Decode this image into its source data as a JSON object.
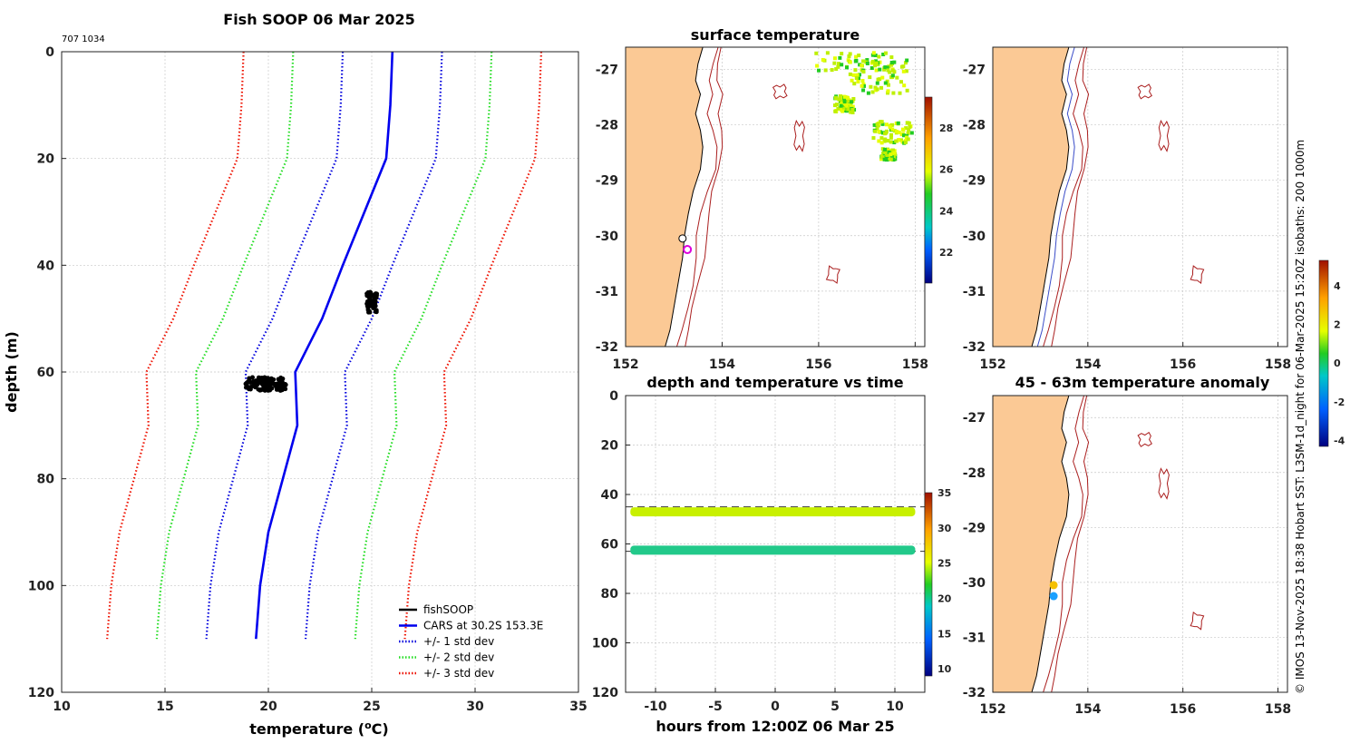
{
  "page_title": "Fish SOOP 06 Mar 2025",
  "corner_code": "707 1034",
  "side_credit": "© IMOS 13-Nov-2025 18:38 Hobart SST: L3SM-1d_night for 06-Mar-2025 15:20Z isobaths: 200  1000m",
  "chart_data": [
    {
      "id": "profile",
      "type": "line",
      "title": "Fish SOOP 06 Mar 2025",
      "xlabel": "temperature (°C)",
      "ylabel": "depth (m)",
      "xlim": [
        10,
        35
      ],
      "ylim": [
        0,
        120
      ],
      "y_inverted": true,
      "xticks": [
        10,
        15,
        20,
        25,
        30,
        35
      ],
      "yticks": [
        0,
        20,
        40,
        60,
        80,
        100,
        120
      ],
      "depths": [
        0,
        10,
        20,
        40,
        50,
        60,
        70,
        90,
        100,
        110
      ],
      "cars_mean": [
        26.0,
        25.9,
        25.7,
        23.6,
        22.6,
        21.3,
        21.4,
        20.0,
        19.6,
        19.4
      ],
      "std_dev": [
        2.4,
        2.4,
        2.4,
        2.4,
        2.4,
        2.4,
        2.4,
        2.4,
        2.4,
        2.4
      ],
      "series": [
        {
          "name": "fishSOOP",
          "color": "#000000",
          "style": "points"
        },
        {
          "name": "CARS at 30.2S 153.3E",
          "color": "#0000ee",
          "style": "solid"
        },
        {
          "name": "+/- 1 std dev",
          "color": "#0000dd",
          "style": "dotted",
          "k": 1
        },
        {
          "name": "+/- 2 std dev",
          "color": "#22dd22",
          "style": "dotted",
          "k": 2
        },
        {
          "name": "+/- 3 std dev",
          "color": "#ee1100",
          "style": "dotted",
          "k": 3
        }
      ],
      "observations": [
        {
          "temperature": 25.0,
          "depth_range": [
            45,
            49
          ]
        },
        {
          "temperature_range": [
            18.9,
            20.9
          ],
          "depth_range": [
            61,
            63.5
          ]
        }
      ]
    },
    {
      "id": "sst_map",
      "type": "heatmap",
      "title": "surface temperature",
      "xlim": [
        152,
        158.2
      ],
      "ylim": [
        -32,
        -26.6
      ],
      "xticks": [
        152,
        154,
        156,
        158
      ],
      "yticks": [
        -27,
        -28,
        -29,
        -30,
        -31,
        -32
      ],
      "colorbar": {
        "min": 20.5,
        "max": 29.5,
        "ticks": [
          22,
          24,
          26,
          28
        ]
      },
      "markers": [
        {
          "lon": 153.18,
          "lat": -30.05,
          "color": "#ffffff",
          "edge": "#000000"
        },
        {
          "lon": 153.28,
          "lat": -30.25,
          "color": "#ffffff",
          "edge": "#dd00dd"
        }
      ]
    },
    {
      "id": "depth_time",
      "type": "scatter",
      "title": "depth and temperature vs time",
      "xlabel": "hours from 12:00Z 06 Mar 25",
      "xlim": [
        -12.5,
        12.5
      ],
      "ylim": [
        0,
        120
      ],
      "y_inverted": true,
      "xticks": [
        -10,
        -5,
        0,
        5,
        10
      ],
      "yticks": [
        0,
        20,
        40,
        60,
        80,
        100,
        120
      ],
      "reference_depths": [
        45,
        63
      ],
      "colorbar": {
        "min": 9,
        "max": 35,
        "ticks": [
          10,
          15,
          20,
          25,
          30,
          35
        ]
      },
      "series": [
        {
          "name": "upper",
          "depth": 47,
          "temperature": 25.0
        },
        {
          "name": "lower",
          "depth": 62.5,
          "temperature": 20.2
        }
      ]
    },
    {
      "id": "isobath_map",
      "type": "scatter",
      "title": "",
      "xlim": [
        152,
        158.2
      ],
      "ylim": [
        -32,
        -26.6
      ],
      "xticks": [
        152,
        154,
        156,
        158
      ],
      "yticks": [
        -27,
        -28,
        -29,
        -30,
        -31,
        -32
      ]
    },
    {
      "id": "anomaly_map",
      "type": "scatter",
      "title": "45 - 63m temperature anomaly",
      "xlim": [
        152,
        158.2
      ],
      "ylim": [
        -32,
        -26.6
      ],
      "xticks": [
        152,
        154,
        156,
        158
      ],
      "yticks": [
        -27,
        -28,
        -29,
        -30,
        -31,
        -32
      ],
      "colorbar": {
        "min": -4.3,
        "max": 5.3,
        "ticks": [
          -4,
          -2,
          0,
          2,
          4
        ]
      },
      "markers": [
        {
          "lon": 153.28,
          "lat": -30.05,
          "anomaly": 2.9
        },
        {
          "lon": 153.28,
          "lat": -30.25,
          "anomaly": -1.7
        }
      ]
    }
  ]
}
